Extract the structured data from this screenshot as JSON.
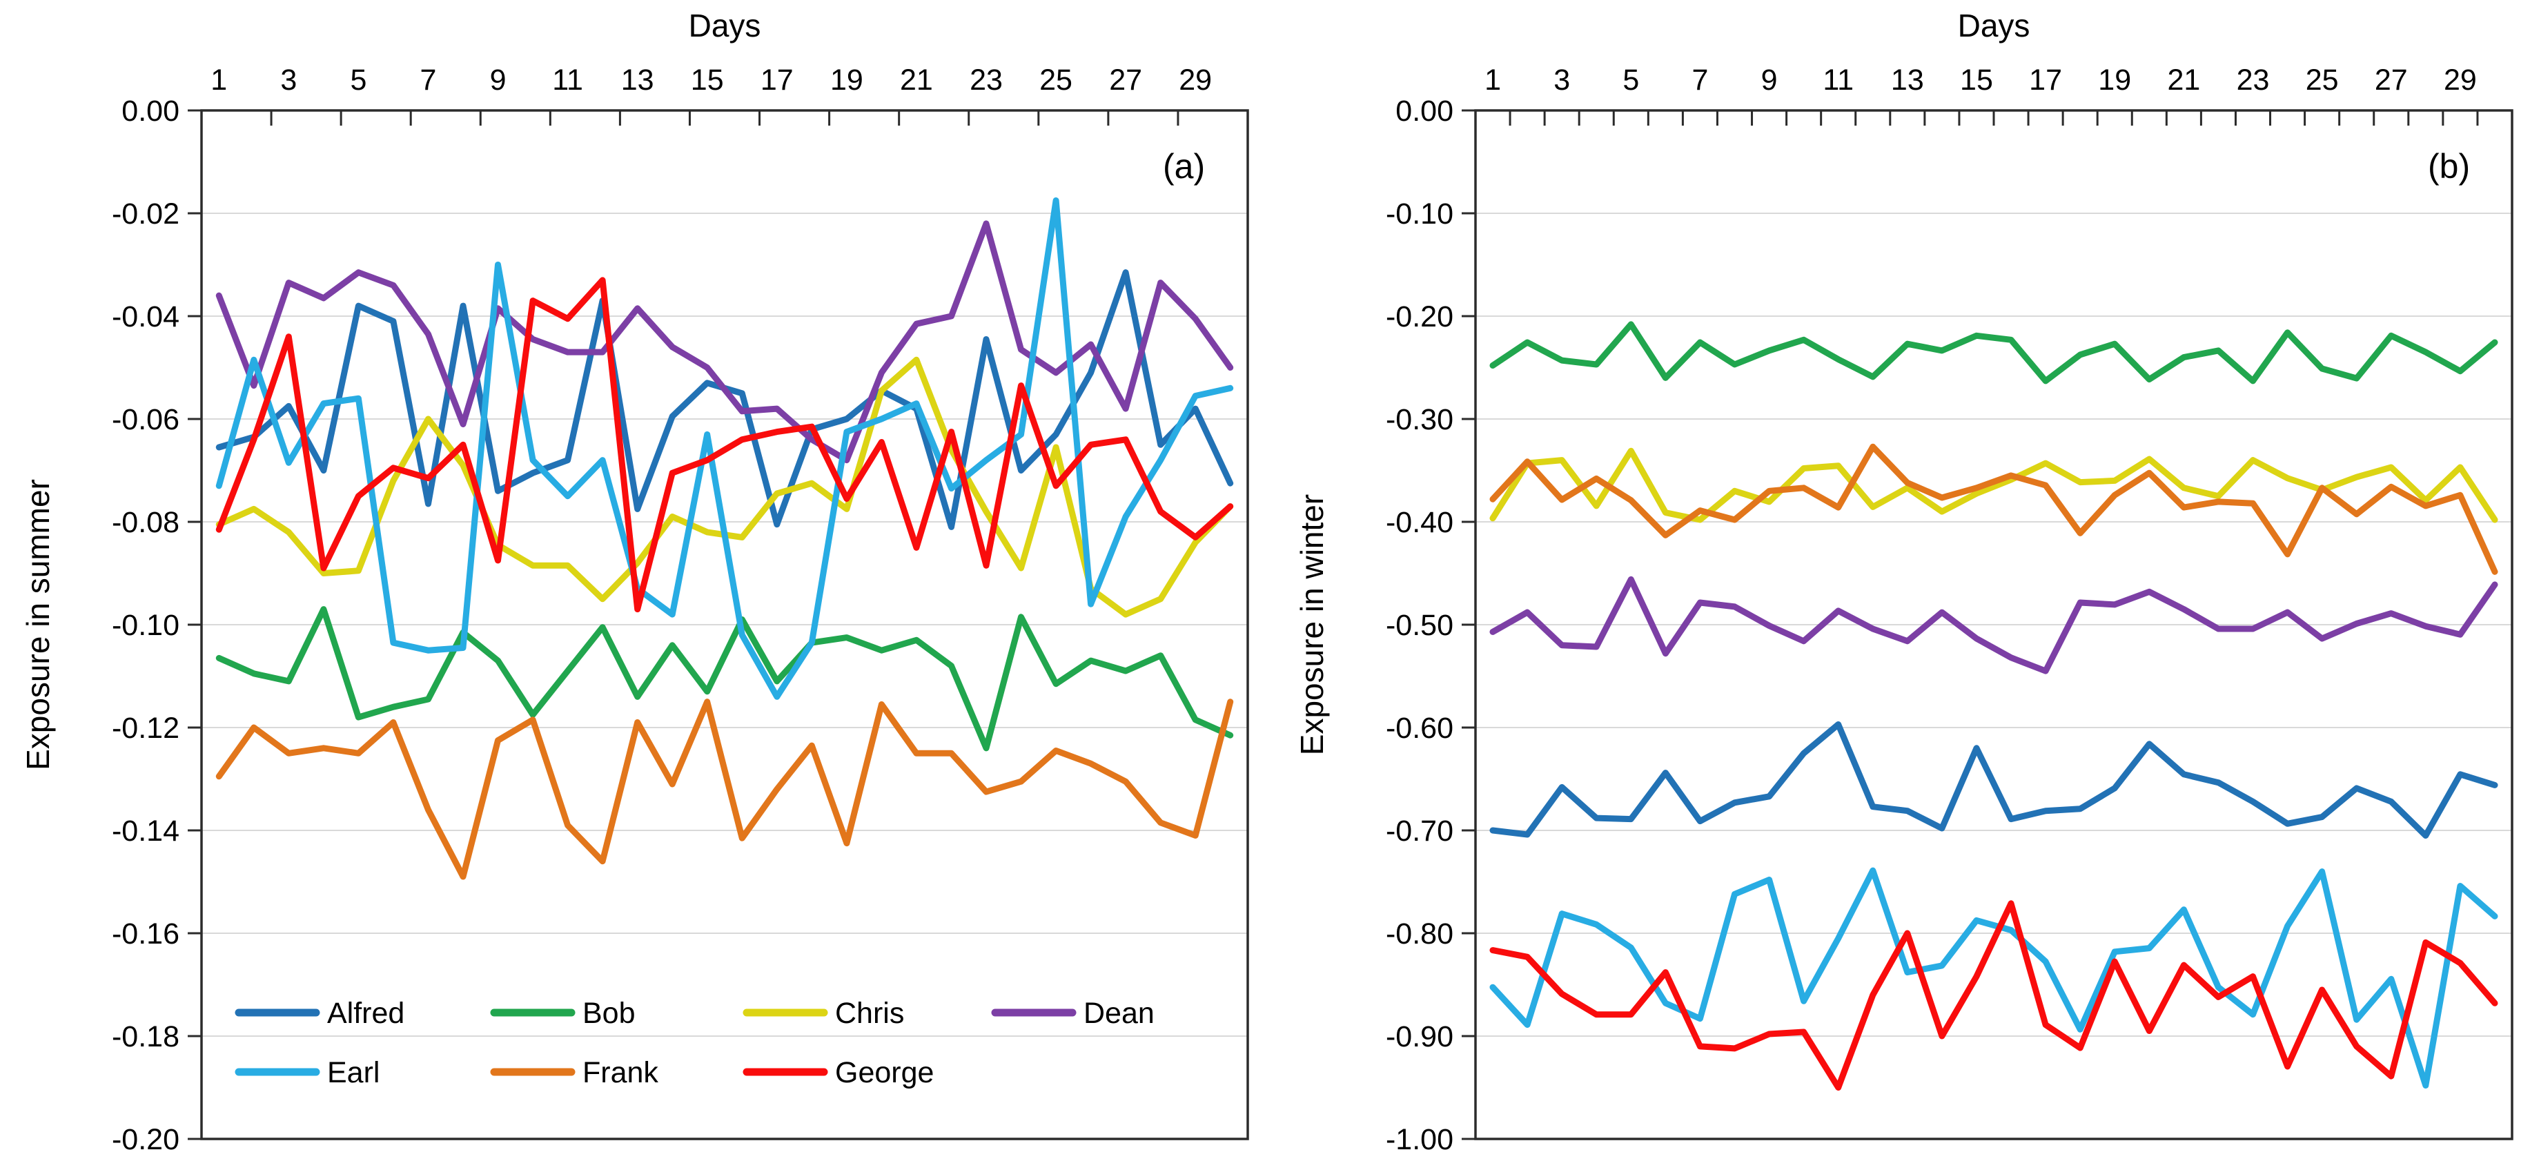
{
  "figure": {
    "panel_a_corner_label": "(a)",
    "panel_b_corner_label": "(b)",
    "panel_a_x_title": "Days",
    "panel_b_x_title": "Days",
    "panel_a_y_title": "Exposure in summer",
    "panel_b_y_title": "Exposure in winter",
    "colors": {
      "Alfred": "#2272B5",
      "Bob": "#21A64E",
      "Chris": "#DCD414",
      "Dean": "#7C3FA5",
      "Earl": "#28ACE3",
      "Frank": "#E2761B",
      "George": "#F90C0C",
      "gridline": "#D9D9D9",
      "axis": "#2B2B2B",
      "text": "#000000"
    },
    "legend": {
      "rows": [
        [
          "Alfred",
          "Bob",
          "Chris",
          "Dean"
        ],
        [
          "Earl",
          "Frank",
          "George"
        ]
      ],
      "location": "inside bottom-left of panel (a)"
    }
  },
  "chart_data": [
    {
      "type": "line",
      "panel": "a",
      "title": "",
      "corner_label": "(a)",
      "xlabel": "Days",
      "ylabel": "Exposure in summer",
      "x": [
        1,
        2,
        3,
        4,
        5,
        6,
        7,
        8,
        9,
        10,
        11,
        12,
        13,
        14,
        15,
        16,
        17,
        18,
        19,
        20,
        21,
        22,
        23,
        24,
        25,
        26,
        27,
        28,
        29,
        30
      ],
      "x_tick_label_interval": 2,
      "x_tick_mark_interval": 2,
      "ylim": [
        -0.2,
        0.0
      ],
      "ytick_labels": [
        "0.00",
        "-0.02",
        "-0.04",
        "-0.06",
        "-0.08",
        "-0.10",
        "-0.12",
        "-0.14",
        "-0.16",
        "-0.18",
        "-0.20"
      ],
      "grid": true,
      "legend_position": "inside-bottom-left",
      "series": [
        {
          "name": "Alfred",
          "color": "#2272B5",
          "values": [
            -0.0655,
            -0.0635,
            -0.0575,
            -0.07,
            -0.038,
            -0.041,
            -0.0765,
            -0.038,
            -0.074,
            -0.0705,
            -0.068,
            -0.037,
            -0.0775,
            -0.0595,
            -0.053,
            -0.055,
            -0.0805,
            -0.062,
            -0.06,
            -0.0545,
            -0.058,
            -0.081,
            -0.0445,
            -0.07,
            -0.063,
            -0.051,
            -0.0315,
            -0.065,
            -0.058,
            -0.0725
          ]
        },
        {
          "name": "Bob",
          "color": "#21A64E",
          "values": [
            -0.1065,
            -0.1095,
            -0.111,
            -0.097,
            -0.118,
            -0.116,
            -0.1145,
            -0.1015,
            -0.107,
            -0.1175,
            -0.109,
            -0.1005,
            -0.114,
            -0.104,
            -0.113,
            -0.099,
            -0.111,
            -0.1035,
            -0.1025,
            -0.105,
            -0.103,
            -0.108,
            -0.124,
            -0.0985,
            -0.1115,
            -0.107,
            -0.109,
            -0.106,
            -0.1185,
            -0.1215
          ]
        },
        {
          "name": "Chris",
          "color": "#DCD414",
          "values": [
            -0.0805,
            -0.0775,
            -0.082,
            -0.09,
            -0.0895,
            -0.072,
            -0.06,
            -0.069,
            -0.0845,
            -0.0885,
            -0.0885,
            -0.095,
            -0.088,
            -0.079,
            -0.082,
            -0.083,
            -0.0745,
            -0.0725,
            -0.0775,
            -0.0545,
            -0.0485,
            -0.066,
            -0.078,
            -0.089,
            -0.0655,
            -0.093,
            -0.098,
            -0.095,
            -0.084,
            -0.077
          ]
        },
        {
          "name": "Dean",
          "color": "#7C3FA5",
          "values": [
            -0.036,
            -0.0535,
            -0.0335,
            -0.0365,
            -0.0315,
            -0.034,
            -0.0435,
            -0.061,
            -0.0385,
            -0.0445,
            -0.047,
            -0.047,
            -0.0385,
            -0.046,
            -0.05,
            -0.0585,
            -0.058,
            -0.064,
            -0.068,
            -0.051,
            -0.0415,
            -0.04,
            -0.022,
            -0.0465,
            -0.051,
            -0.0455,
            -0.058,
            -0.0335,
            -0.0405,
            -0.05
          ]
        },
        {
          "name": "Earl",
          "color": "#28ACE3",
          "values": [
            -0.073,
            -0.0485,
            -0.0685,
            -0.057,
            -0.056,
            -0.1035,
            -0.105,
            -0.1045,
            -0.03,
            -0.068,
            -0.075,
            -0.068,
            -0.093,
            -0.098,
            -0.063,
            -0.102,
            -0.114,
            -0.1035,
            -0.0625,
            -0.06,
            -0.057,
            -0.0735,
            -0.068,
            -0.063,
            -0.0175,
            -0.096,
            -0.079,
            -0.068,
            -0.0555,
            -0.054
          ]
        },
        {
          "name": "Frank",
          "color": "#E2761B",
          "values": [
            -0.1295,
            -0.12,
            -0.125,
            -0.124,
            -0.125,
            -0.119,
            -0.136,
            -0.149,
            -0.1225,
            -0.1185,
            -0.139,
            -0.146,
            -0.119,
            -0.131,
            -0.115,
            -0.1415,
            -0.132,
            -0.1235,
            -0.1425,
            -0.1155,
            -0.125,
            -0.125,
            -0.1325,
            -0.1305,
            -0.1245,
            -0.127,
            -0.1305,
            -0.1385,
            -0.141,
            -0.115
          ]
        },
        {
          "name": "George",
          "color": "#F90C0C",
          "values": [
            -0.0815,
            -0.064,
            -0.044,
            -0.089,
            -0.075,
            -0.0695,
            -0.0715,
            -0.065,
            -0.0875,
            -0.037,
            -0.0405,
            -0.033,
            -0.097,
            -0.0705,
            -0.068,
            -0.064,
            -0.0625,
            -0.0615,
            -0.0755,
            -0.0645,
            -0.085,
            -0.0625,
            -0.0885,
            -0.0535,
            -0.073,
            -0.065,
            -0.064,
            -0.078,
            -0.083,
            -0.077
          ]
        }
      ]
    },
    {
      "type": "line",
      "panel": "b",
      "title": "",
      "corner_label": "(b)",
      "xlabel": "Days",
      "ylabel": "Exposure in winter",
      "x": [
        1,
        2,
        3,
        4,
        5,
        6,
        7,
        8,
        9,
        10,
        11,
        12,
        13,
        14,
        15,
        16,
        17,
        18,
        19,
        20,
        21,
        22,
        23,
        24,
        25,
        26,
        27,
        28,
        29,
        30
      ],
      "x_tick_label_interval": 2,
      "x_tick_mark_interval": 1,
      "ylim": [
        -1.0,
        0.0
      ],
      "ytick_labels": [
        "0.00",
        "-0.10",
        "-0.20",
        "-0.30",
        "-0.40",
        "-0.50",
        "-0.60",
        "-0.70",
        "-0.80",
        "-0.90",
        "-1.00"
      ],
      "grid": true,
      "legend_position": null,
      "series": [
        {
          "name": "Alfred",
          "color": "#2272B5",
          "values": [
            -0.7,
            -0.704,
            -0.658,
            -0.688,
            -0.689,
            -0.644,
            -0.691,
            -0.673,
            -0.667,
            -0.625,
            -0.597,
            -0.677,
            -0.681,
            -0.698,
            -0.62,
            -0.689,
            -0.681,
            -0.679,
            -0.659,
            -0.616,
            -0.6455,
            -0.6535,
            -0.672,
            -0.6935,
            -0.687,
            -0.659,
            -0.672,
            -0.705,
            -0.6455,
            -0.656
          ]
        },
        {
          "name": "Bob",
          "color": "#21A64E",
          "values": [
            -0.248,
            -0.2255,
            -0.243,
            -0.247,
            -0.208,
            -0.26,
            -0.2255,
            -0.247,
            -0.2335,
            -0.223,
            -0.242,
            -0.259,
            -0.227,
            -0.2335,
            -0.219,
            -0.223,
            -0.263,
            -0.2375,
            -0.227,
            -0.2615,
            -0.24,
            -0.2335,
            -0.263,
            -0.216,
            -0.251,
            -0.2605,
            -0.219,
            -0.235,
            -0.2535,
            -0.2255
          ]
        },
        {
          "name": "Chris",
          "color": "#DCD414",
          "values": [
            -0.3965,
            -0.343,
            -0.34,
            -0.3845,
            -0.331,
            -0.391,
            -0.398,
            -0.37,
            -0.3805,
            -0.348,
            -0.3455,
            -0.3855,
            -0.367,
            -0.39,
            -0.3725,
            -0.359,
            -0.343,
            -0.3615,
            -0.36,
            -0.339,
            -0.367,
            -0.375,
            -0.34,
            -0.3575,
            -0.369,
            -0.3565,
            -0.347,
            -0.379,
            -0.347,
            -0.398
          ]
        },
        {
          "name": "Dean",
          "color": "#7C3FA5",
          "values": [
            -0.507,
            -0.488,
            -0.52,
            -0.5215,
            -0.456,
            -0.528,
            -0.4785,
            -0.4825,
            -0.501,
            -0.516,
            -0.4865,
            -0.504,
            -0.516,
            -0.488,
            -0.5135,
            -0.532,
            -0.545,
            -0.4785,
            -0.4805,
            -0.468,
            -0.485,
            -0.504,
            -0.504,
            -0.488,
            -0.5135,
            -0.499,
            -0.489,
            -0.5015,
            -0.5095,
            -0.461
          ]
        },
        {
          "name": "Earl",
          "color": "#28ACE3",
          "values": [
            -0.8525,
            -0.889,
            -0.781,
            -0.7915,
            -0.814,
            -0.868,
            -0.883,
            -0.762,
            -0.748,
            -0.866,
            -0.805,
            -0.739,
            -0.838,
            -0.8315,
            -0.7875,
            -0.797,
            -0.8275,
            -0.8935,
            -0.818,
            -0.8145,
            -0.777,
            -0.8525,
            -0.879,
            -0.793,
            -0.74,
            -0.884,
            -0.8445,
            -0.948,
            -0.754,
            -0.7835
          ]
        },
        {
          "name": "Frank",
          "color": "#E2761B",
          "values": [
            -0.378,
            -0.3415,
            -0.3785,
            -0.358,
            -0.379,
            -0.413,
            -0.389,
            -0.398,
            -0.37,
            -0.367,
            -0.386,
            -0.327,
            -0.362,
            -0.3765,
            -0.367,
            -0.355,
            -0.3645,
            -0.411,
            -0.374,
            -0.3525,
            -0.386,
            -0.3805,
            -0.382,
            -0.4315,
            -0.367,
            -0.3925,
            -0.366,
            -0.3845,
            -0.374,
            -0.4485
          ]
        },
        {
          "name": "George",
          "color": "#F90C0C",
          "values": [
            -0.8165,
            -0.823,
            -0.859,
            -0.879,
            -0.879,
            -0.838,
            -0.91,
            -0.912,
            -0.898,
            -0.896,
            -0.95,
            -0.86,
            -0.8,
            -0.9,
            -0.842,
            -0.771,
            -0.889,
            -0.9115,
            -0.8275,
            -0.895,
            -0.831,
            -0.862,
            -0.842,
            -0.9295,
            -0.855,
            -0.91,
            -0.939,
            -0.809,
            -0.829,
            -0.868
          ]
        }
      ]
    }
  ]
}
